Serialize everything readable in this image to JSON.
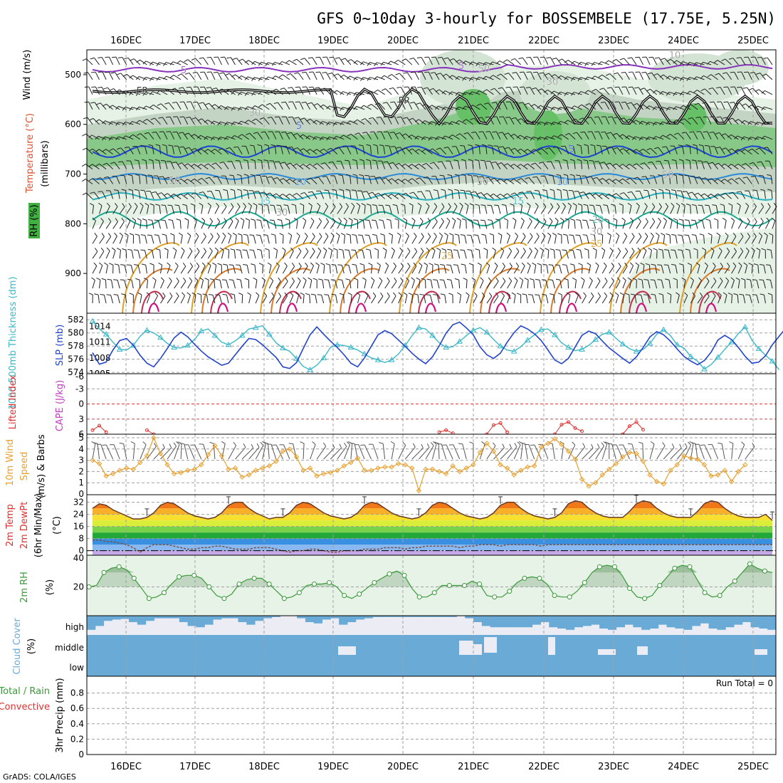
{
  "title": "GFS 0~10day 3-hourly for BOSSEMBELE (17.75E, 5.25N)",
  "credit": "GrADS: COLA/IGES",
  "dates": [
    "16DEC",
    "17DEC",
    "18DEC",
    "19DEC",
    "20DEC",
    "21DEC",
    "22DEC",
    "23DEC",
    "24DEC",
    "25DEC"
  ],
  "colors": {
    "grid": "#a0a0a0",
    "cyan": "#3ab8c8",
    "blue": "#2244cc",
    "orange": "#e8a030",
    "green": "#3a9a3a",
    "red": "#e03030",
    "magenta": "#c040c0",
    "cloud": "#6aaad6"
  },
  "chart_data": [
    {
      "type": "heatmap",
      "panel": "vertical-profile",
      "ylabel": "(millibars)",
      "side_labels": [
        "Wind (m/s)",
        "Temperature (°C)",
        "RH (%)"
      ],
      "ylim": [
        980,
        450
      ],
      "yticks": [
        500,
        600,
        700,
        800,
        900
      ],
      "contour_labels": [
        "5",
        "5",
        "5",
        "5",
        "10",
        "10",
        "15",
        "15",
        "20",
        "25",
        "25",
        "FR",
        "FR",
        "50",
        "50",
        "50",
        "30",
        "30",
        "30",
        "30",
        "10",
        "50"
      ]
    },
    {
      "type": "line",
      "panel": "thickness-slp",
      "ylabel_left": "1000-500mb Thickness (dm)",
      "ylabel_right": "SLP (mb)",
      "yticks_left": [
        "582",
        "580",
        "578",
        "576",
        "574"
      ],
      "yticks_right": [
        "1014",
        "1011",
        "1008",
        "1005"
      ],
      "series": [
        {
          "name": "Thickness",
          "values": [
            581.8,
            580.6,
            579.8,
            578.6,
            577.5,
            577.4,
            578.1,
            579.5,
            580.4,
            580.0,
            579.3,
            578.4,
            577.8,
            577.7,
            578.1,
            579.0,
            580.3,
            580.6,
            579.6,
            578.6,
            578.2,
            578.8,
            579.6,
            580.6,
            580.8,
            581.1,
            579.8,
            578.5,
            577.7,
            577.2,
            576.1,
            574.9,
            574.4,
            575.1,
            576.2,
            577.8,
            578.2,
            578.1,
            577.8,
            577.4,
            576.8,
            576.2,
            575.9,
            575.5,
            575.9,
            576.8,
            578.1,
            579.6,
            580.8,
            580.6,
            579.6,
            578.5,
            577.8,
            577.9,
            578.7,
            579.6,
            580.4,
            580.8,
            580.1,
            579.0,
            578.0,
            577.4,
            577.2,
            577.9,
            578.9,
            579.7,
            580.5,
            580.6,
            579.7,
            578.5,
            577.8,
            577.3,
            577.5,
            578.1,
            579.0,
            579.8,
            580.1,
            579.2,
            578.3,
            577.6,
            577.2,
            577.5,
            578.4,
            579.8,
            580.5,
            579.6,
            578.2,
            577.7,
            576.4,
            575.7,
            574.5,
            575.2,
            576.3,
            577.5,
            578.6,
            579.9,
            580.9,
            578.9,
            577.6,
            576.6,
            575.7,
            574.4
          ]
        },
        {
          "name": "SLP",
          "values": [
            1009.0,
            1006.8,
            1007.2,
            1009.5,
            1011.3,
            1011.7,
            1010.4,
            1008.5,
            1007.0,
            1006.3,
            1007.9,
            1009.8,
            1011.8,
            1012.9,
            1012.0,
            1010.6,
            1009.3,
            1008.2,
            1007.4,
            1006.6,
            1007.0,
            1008.6,
            1010.2,
            1011.7,
            1011.5,
            1010.5,
            1009.3,
            1008.1,
            1006.3,
            1006.0,
            1007.1,
            1009.8,
            1012.4,
            1013.9,
            1012.5,
            1011.2,
            1010.0,
            1008.6,
            1007.0,
            1006.3,
            1008.0,
            1010.2,
            1012.4,
            1013.2,
            1012.6,
            1011.4,
            1010.2,
            1008.9,
            1007.8,
            1006.9,
            1008.2,
            1010.3,
            1012.7,
            1014.3,
            1014.8,
            1013.7,
            1012.4,
            1010.1,
            1008.6,
            1007.9,
            1008.9,
            1011.0,
            1012.8,
            1014.1,
            1013.5,
            1012.6,
            1011.3,
            1009.5,
            1007.6,
            1006.9,
            1007.9,
            1010.1,
            1012.3,
            1013.1,
            1012.6,
            1011.2,
            1009.9,
            1008.9,
            1007.9,
            1007.0,
            1008.2,
            1010.0,
            1012.0,
            1013.0,
            1012.4,
            1011.2,
            1009.7,
            1008.3,
            1007.4,
            1006.7,
            1007.5,
            1009.1,
            1011.4,
            1012.3,
            1011.5,
            1010.0,
            1008.3,
            1007.0,
            1007.2,
            1008.4,
            1010.5,
            1012.1,
            1013.7
          ]
        }
      ]
    },
    {
      "type": "line",
      "panel": "lifted-index-cape",
      "ylabel": "Lifted Index",
      "ylabel2": "CAPE (J/kg)",
      "yticks": [
        "-3",
        "0",
        "3",
        "6"
      ],
      "ylim": [
        -6,
        6
      ],
      "series": [
        {
          "name": "Lifted Index",
          "segments": [
            [
              [
                0,
                5.2
              ],
              [
                1,
                4.3
              ],
              [
                2,
                5.6
              ]
            ],
            [
              [
                8,
                5.2
              ],
              [
                9,
                6
              ]
            ],
            [
              [
                51,
                5.6
              ],
              [
                52,
                5.2
              ],
              [
                53,
                5.8
              ]
            ],
            [
              [
                58,
                6
              ],
              [
                59,
                4.2
              ],
              [
                60,
                3.8
              ],
              [
                61,
                5.6
              ]
            ],
            [
              [
                68,
                6
              ],
              [
                69,
                4.1
              ],
              [
                70,
                3.6
              ],
              [
                71,
                4.8
              ],
              [
                72,
                5.4
              ]
            ],
            [
              [
                78,
                6
              ],
              [
                79,
                4.4
              ],
              [
                80,
                3.6
              ],
              [
                81,
                5.1
              ]
            ]
          ]
        }
      ]
    },
    {
      "type": "line",
      "panel": "10m-wind",
      "ylabel": "10m Wind Speed (m/s) & Barbs",
      "yticks": [
        "5",
        "4",
        "3",
        "2",
        "1",
        "0"
      ],
      "ylim": [
        0,
        5
      ],
      "series": [
        {
          "name": "10m Wind Speed",
          "values": [
            3.0,
            2.7,
            1.6,
            1.8,
            2.1,
            2.3,
            2.2,
            2.8,
            3.4,
            5.0,
            3.6,
            2.6,
            1.8,
            1.9,
            2.1,
            2.2,
            2.6,
            3.5,
            4.3,
            3.4,
            2.2,
            2.3,
            1.5,
            1.7,
            2.1,
            2.3,
            2.5,
            2.9,
            3.8,
            4.0,
            3.3,
            2.1,
            2.3,
            1.6,
            1.8,
            1.9,
            2.1,
            2.5,
            2.8,
            3.2,
            2.1,
            2.1,
            2.3,
            2.4,
            2.4,
            2.7,
            2.6,
            2.3,
            0.3,
            2.2,
            2.2,
            2.0,
            1.8,
            2.5,
            2.0,
            2.3,
            2.6,
            3.7,
            4.5,
            3.8,
            2.6,
            2.3,
            1.7,
            2.1,
            2.4,
            2.5,
            4.2,
            4.5,
            4.9,
            4.4,
            3.8,
            3.1,
            1.3,
            0.7,
            1.0,
            1.7,
            2.2,
            2.7,
            3.3,
            3.7,
            3.6,
            2.9,
            1.7,
            1.1,
            0.9,
            2.1,
            2.6,
            3.4,
            3.2,
            3.1,
            2.6,
            1.6,
            1.7,
            2.1,
            1.1,
            2.0,
            2.6
          ]
        }
      ]
    },
    {
      "type": "area",
      "panel": "2m-temp",
      "ylabel": "2m Temp 2m DewPt (6hr Min/Max) (°C)",
      "yticks": [
        "32",
        "24",
        "16",
        "8",
        "0"
      ],
      "ylim": [
        -3,
        37
      ],
      "series": [
        {
          "name": "2m Temp",
          "values": [
            28,
            31,
            30,
            27,
            25,
            23,
            21,
            21,
            22,
            25,
            30,
            32,
            31,
            28,
            25,
            23,
            22,
            21,
            22,
            25,
            30,
            32,
            32,
            28,
            25,
            23,
            21,
            22,
            22,
            25,
            30,
            32,
            31,
            28,
            25,
            23,
            22,
            21,
            22,
            25,
            30,
            32,
            31,
            28,
            25,
            23,
            22,
            21,
            22,
            25,
            30,
            32,
            31,
            28,
            25,
            23,
            22,
            21,
            22,
            25,
            30,
            32,
            32,
            28,
            25,
            23,
            22,
            21,
            22,
            25,
            31,
            33,
            32,
            28,
            25,
            23,
            22,
            22,
            22,
            26,
            31,
            33,
            32,
            28,
            25,
            23,
            22,
            22,
            22,
            26,
            31,
            33,
            32,
            28,
            25,
            23,
            22,
            22,
            22,
            24,
            20
          ]
        },
        {
          "name": "2m DewPt",
          "values": [
            7,
            7,
            6,
            6,
            5,
            4,
            2,
            -1,
            2,
            4,
            4,
            4,
            3,
            2,
            1,
            1,
            2,
            2,
            3,
            3,
            2,
            1,
            1,
            1,
            2,
            2,
            2,
            1,
            0,
            -1,
            0,
            0,
            1,
            1,
            0,
            -1,
            -1,
            0,
            0,
            0,
            1,
            1,
            1,
            2,
            2,
            2,
            1,
            2,
            2,
            3,
            3,
            3,
            3,
            3,
            2,
            3,
            3,
            4,
            4,
            4,
            3,
            4,
            4,
            4,
            4,
            4,
            3,
            4,
            4,
            4,
            4,
            4,
            4,
            4,
            4,
            4,
            4,
            4,
            4,
            4,
            4,
            4,
            4,
            4,
            4,
            4,
            4,
            4,
            4,
            4,
            4,
            4,
            4,
            4,
            4,
            4,
            4,
            4,
            4,
            4,
            4
          ]
        }
      ]
    },
    {
      "type": "area",
      "panel": "2m-rh",
      "ylabel": "2m RH (%)",
      "yticks": [
        "40",
        "20"
      ],
      "ylim": [
        0,
        40
      ],
      "series": [
        {
          "name": "2m RH",
          "values": [
            20,
            21,
            30,
            33,
            34,
            32,
            26,
            19,
            12,
            13,
            16,
            22,
            27,
            28,
            28,
            26,
            20,
            14,
            12,
            15,
            22,
            25,
            26,
            26,
            22,
            17,
            12,
            13,
            16,
            21,
            22,
            22,
            23,
            20,
            14,
            12,
            15,
            19,
            23,
            26,
            29,
            31,
            28,
            19,
            13,
            13,
            16,
            21,
            21,
            21,
            21,
            24,
            22,
            14,
            13,
            13,
            17,
            23,
            26,
            27,
            26,
            22,
            14,
            13,
            13,
            17,
            23,
            30,
            34,
            35,
            34,
            28,
            19,
            13,
            12,
            14,
            21,
            27,
            33,
            35,
            34,
            25,
            16,
            13,
            14,
            20,
            24,
            30,
            36,
            33,
            31,
            30
          ]
        }
      ]
    },
    {
      "type": "bar",
      "panel": "cloud-cover",
      "ylabel": "Cloud Cover (%)",
      "levels": [
        "high",
        "middle",
        "low"
      ]
    },
    {
      "type": "bar",
      "panel": "precip",
      "ylabel": "3hr Precip (mm)",
      "ylabel2": "Total / Rain",
      "ylabel3": "Convective",
      "yticks": [
        "0.8",
        "0.6",
        "0.4",
        "0.2",
        "0"
      ],
      "ylim": [
        0,
        1
      ],
      "run_total": "Run Total = 0",
      "values": []
    }
  ]
}
